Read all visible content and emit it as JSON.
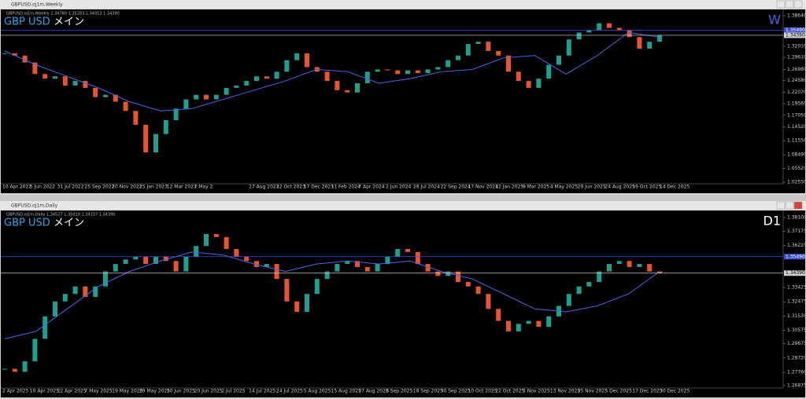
{
  "windows": [
    {
      "title": "GBPUSD.oj1m,Weekly",
      "info": "GBPUSD.oj1m,Weekly  1.34780 1.35283 1.34013 1.34390",
      "symbol": "GBP USD",
      "label": "メイン",
      "timeframe": "W",
      "chart_data": {
        "type": "candlestick",
        "up_color": "#1fa08f",
        "down_color": "#e8552d",
        "ma_color": "#4a67e8",
        "close": [
          1.305,
          1.3,
          1.285,
          1.26,
          1.25,
          1.255,
          1.235,
          1.245,
          1.23,
          1.21,
          1.215,
          1.2,
          1.18,
          1.15,
          1.09,
          1.13,
          1.16,
          1.185,
          1.205,
          1.215,
          1.205,
          1.215,
          1.23,
          1.235,
          1.245,
          1.255,
          1.25,
          1.265,
          1.29,
          1.305,
          1.275,
          1.265,
          1.245,
          1.225,
          1.22,
          1.24,
          1.265,
          1.27,
          1.268,
          1.26,
          1.268,
          1.262,
          1.27,
          1.275,
          1.29,
          1.3,
          1.325,
          1.33,
          1.31,
          1.3,
          1.265,
          1.245,
          1.23,
          1.25,
          1.28,
          1.3,
          1.335,
          1.35,
          1.355,
          1.37,
          1.36,
          1.355,
          1.34,
          1.315,
          1.33,
          1.344
        ],
        "ma": [
          1.31,
          1.28,
          1.255,
          1.23,
          1.2,
          1.18,
          1.185,
          1.205,
          1.225,
          1.245,
          1.27,
          1.265,
          1.24,
          1.25,
          1.265,
          1.27,
          1.295,
          1.3,
          1.26,
          1.3,
          1.35,
          1.34
        ],
        "ylim": [
          1.0119,
          1.3966
        ],
        "yticks": [
          {
            "value": 1.3864,
            "label": "1.38640"
          },
          {
            "value": 1.3201,
            "label": "1.32010"
          },
          {
            "value": 1.2961,
            "label": "1.29610"
          },
          {
            "value": 1.2698,
            "label": "1.26980"
          },
          {
            "value": 1.2458,
            "label": "1.24580"
          },
          {
            "value": 1.2207,
            "label": "1.22070"
          },
          {
            "value": 1.1956,
            "label": "1.19560"
          },
          {
            "value": 1.1705,
            "label": "1.17050"
          },
          {
            "value": 1.1452,
            "label": "1.14520"
          },
          {
            "value": 1.1155,
            "label": "1.11550"
          },
          {
            "value": 1.0849,
            "label": "1.08490"
          },
          {
            "value": 1.0552,
            "label": "1.05520"
          },
          {
            "value": 1.0255,
            "label": "1.02550"
          }
        ],
        "price_lines": [
          {
            "value": 1.3549,
            "label": "1.35490",
            "color": "#3b4fd8"
          },
          {
            "value": 1.3439,
            "label": "1.34390",
            "color": "#d0d0d0"
          }
        ],
        "categories": [
          "10 Apr 2022",
          "5 Jun 2022",
          "31 Jul 2022",
          "25 Sep 2022",
          "20 Nov 2022",
          "15 Jan 2023",
          "12 Mar 2023",
          "7 May 2",
          null,
          "27 Aug 2023",
          "22 Oct 2023",
          "17 Dec 2023",
          "11 Feb 2024",
          "7 Apr 2024",
          "2 Jun 2024",
          "28 Jul 2024",
          "22 Sep 2024",
          "17 Nov 2024",
          "12 Jan 2025",
          "9 Mar 2025",
          "4 May 2025",
          "29 Jun 2025",
          "24 Aug 2025",
          "19 Oct 2025",
          "14 Dec 2025"
        ]
      }
    },
    {
      "title": "GBPUSD.oj1m,Daily",
      "info": "GBPUSD.oj1m,Daily  1.34527 1.35010 1.34337 1.34390",
      "symbol": "GBP USD",
      "label": "メイン",
      "timeframe": "D1",
      "chart_data": {
        "type": "candlestick",
        "up_color": "#1fa08f",
        "down_color": "#e8552d",
        "ma_color": "#4a67e8",
        "close": [
          1.28,
          1.278,
          1.285,
          1.3,
          1.315,
          1.325,
          1.33,
          1.335,
          1.328,
          1.335,
          1.345,
          1.35,
          1.353,
          1.355,
          1.35,
          1.355,
          1.352,
          1.345,
          1.355,
          1.362,
          1.37,
          1.368,
          1.36,
          1.355,
          1.352,
          1.348,
          1.35,
          1.34,
          1.325,
          1.318,
          1.33,
          1.34,
          1.345,
          1.35,
          1.352,
          1.348,
          1.345,
          1.35,
          1.355,
          1.36,
          1.358,
          1.35,
          1.345,
          1.342,
          1.345,
          1.338,
          1.335,
          1.33,
          1.32,
          1.312,
          1.305,
          1.31,
          1.312,
          1.308,
          1.315,
          1.322,
          1.33,
          1.335,
          1.338,
          1.345,
          1.35,
          1.352,
          1.348,
          1.35,
          1.345,
          1.344
        ],
        "ma": [
          1.3,
          1.305,
          1.32,
          1.335,
          1.345,
          1.352,
          1.358,
          1.356,
          1.35,
          1.345,
          1.35,
          1.352,
          1.35,
          1.352,
          1.345,
          1.34,
          1.33,
          1.32,
          1.318,
          1.322,
          1.33,
          1.345
        ],
        "ylim": [
          1.26403,
          1.38467
        ],
        "yticks": [
          {
            "value": 1.381,
            "label": "1.38100"
          },
          {
            "value": 1.37175,
            "label": "1.37175"
          },
          {
            "value": 1.36225,
            "label": "1.36225"
          },
          {
            "value": 1.33425,
            "label": "1.33425"
          },
          {
            "value": 1.32475,
            "label": "1.32475"
          },
          {
            "value": 1.3153,
            "label": "1.31530"
          },
          {
            "value": 1.30575,
            "label": "1.30575"
          },
          {
            "value": 1.29675,
            "label": "1.29675"
          },
          {
            "value": 1.2872,
            "label": "1.28720"
          },
          {
            "value": 1.2776,
            "label": "1.27760"
          },
          {
            "value": 1.26875,
            "label": "1.26875"
          }
        ],
        "price_lines": [
          {
            "value": 1.3549,
            "label": "1.35490",
            "color": "#3b4fd8"
          },
          {
            "value": 1.3439,
            "label": "1.34390",
            "color": "#d0d0d0"
          }
        ],
        "categories": [
          "2 Apr 2025",
          "10 Apr 2025",
          "22 Apr 2025",
          "7 May 2025",
          "19 May 2025",
          "29 May 2025",
          "10 Jun 2025",
          "20 Jun 2025",
          "2 Jul 2025",
          "14 Jul 2025",
          "24 Jul 2025",
          "5 Aug 2025",
          "15 Aug 2025",
          "27 Aug 2025",
          "8 Sep 2025",
          "18 Sep 2025",
          "30 Sep 2025",
          "10 Oct 2025",
          "22 Oct 2025",
          "3 Nov 2025",
          "13 Nov 2025",
          "25 Nov 2025",
          "5 Dec 2025",
          "17 Dec 2025",
          "30 Dec 2025"
        ]
      }
    }
  ]
}
